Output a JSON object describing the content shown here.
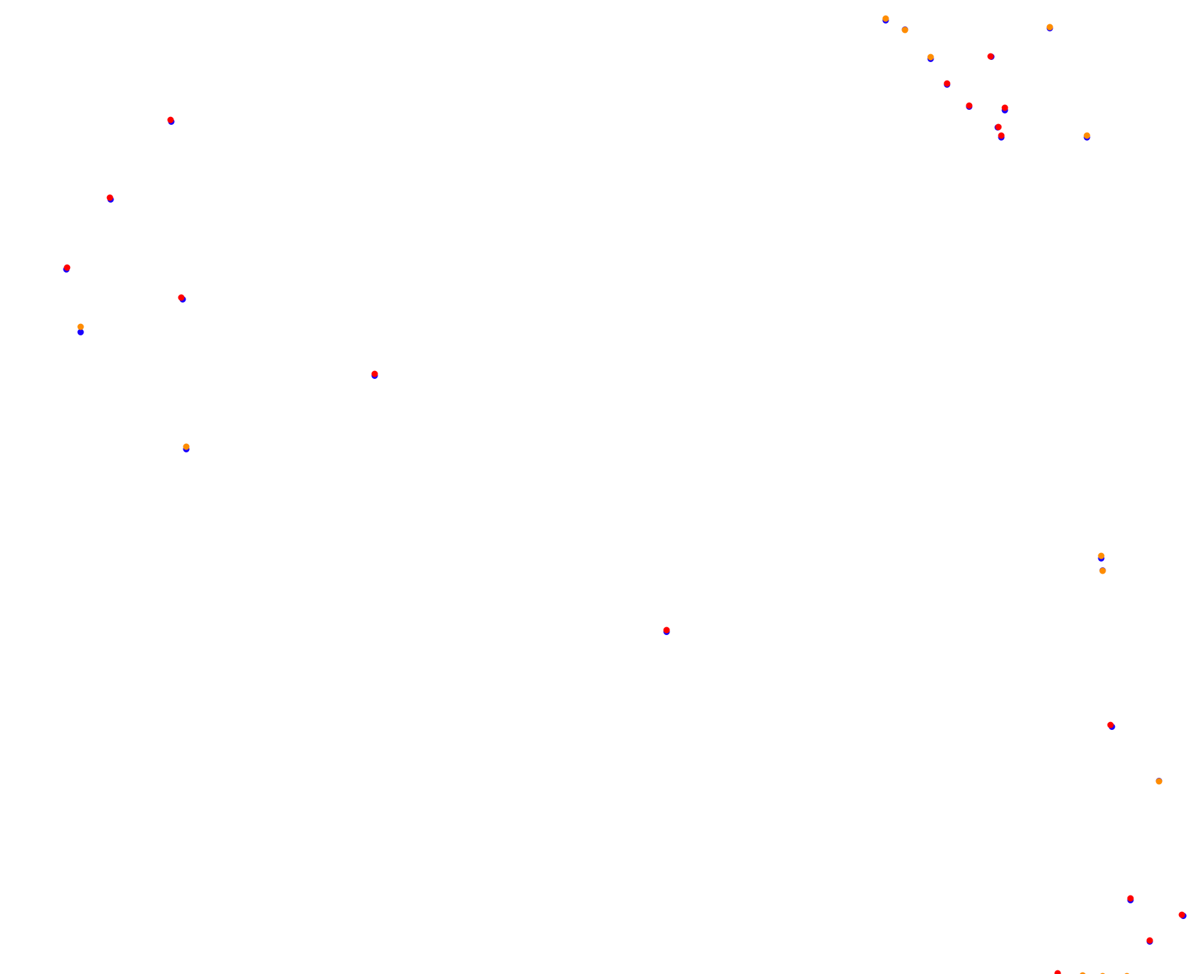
{
  "colors": {
    "background": "#ffffff",
    "primary": "#1a00ff",
    "secondary_red": "#ff0000",
    "secondary_orange": "#ff8c00"
  },
  "markers": [
    {
      "id": "m1",
      "overlay": "orange"
    },
    {
      "id": "m2",
      "overlay": "orange"
    },
    {
      "id": "m3",
      "overlay": "orange"
    },
    {
      "id": "m4",
      "overlay": "red"
    },
    {
      "id": "m5",
      "overlay": "red"
    },
    {
      "id": "m6",
      "overlay": "orange"
    },
    {
      "id": "m7",
      "overlay": "red"
    },
    {
      "id": "m8",
      "overlay": "red"
    },
    {
      "id": "m9",
      "overlay": "red"
    },
    {
      "id": "m10",
      "overlay": "red"
    },
    {
      "id": "m11",
      "overlay": "red"
    },
    {
      "id": "m12",
      "overlay": "orange"
    },
    {
      "id": "m13",
      "overlay": "red"
    },
    {
      "id": "m14",
      "overlay": "red"
    },
    {
      "id": "m15",
      "overlay": "red"
    },
    {
      "id": "m16",
      "overlay": "red"
    },
    {
      "id": "m17",
      "overlay": "orange"
    },
    {
      "id": "m18",
      "overlay": "red"
    },
    {
      "id": "m19",
      "overlay": "orange"
    },
    {
      "id": "m20",
      "overlay": "red"
    },
    {
      "id": "m21",
      "overlay": "orange"
    },
    {
      "id": "m22",
      "overlay": "orange"
    },
    {
      "id": "m23",
      "overlay": "red"
    },
    {
      "id": "m24",
      "overlay": "orange"
    },
    {
      "id": "m25",
      "overlay": "red"
    },
    {
      "id": "m26",
      "overlay": "red"
    },
    {
      "id": "m27",
      "overlay": "red"
    },
    {
      "id": "m28",
      "overlay": "orange"
    },
    {
      "id": "m29",
      "overlay": "orange"
    },
    {
      "id": "m30",
      "overlay": "orange"
    },
    {
      "id": "m31",
      "overlay": "orange"
    },
    {
      "id": "m32",
      "overlay": "orange"
    }
  ]
}
